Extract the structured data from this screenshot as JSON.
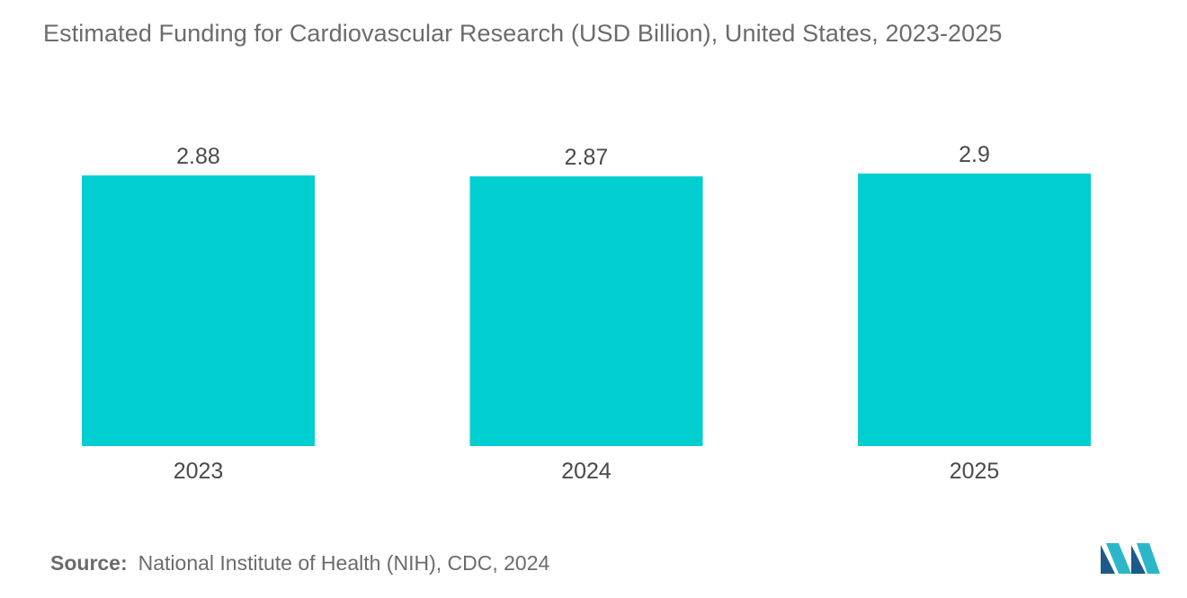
{
  "title": "Estimated Funding for Cardiovascular Research (USD Billion), United States, 2023-2025",
  "chart_data": {
    "type": "bar",
    "title": "Estimated Funding for Cardiovascular Research (USD Billion), United States, 2023-2025",
    "categories": [
      "2023",
      "2024",
      "2025"
    ],
    "values": [
      2.88,
      2.87,
      2.9
    ],
    "value_labels": [
      "2.88",
      "2.87",
      "2.9"
    ],
    "xlabel": "",
    "ylabel": "",
    "ylim": [
      0,
      2.9
    ],
    "grid": false,
    "legend": "none",
    "bar_color": "#00ced1"
  },
  "source": {
    "label": "Source:",
    "text": "National Institute of Health (NIH), CDC, 2024"
  },
  "logo": {
    "icon": "mordor-intelligence-logo-icon",
    "colors": [
      "#1c5a8a",
      "#2bb7c9"
    ]
  }
}
